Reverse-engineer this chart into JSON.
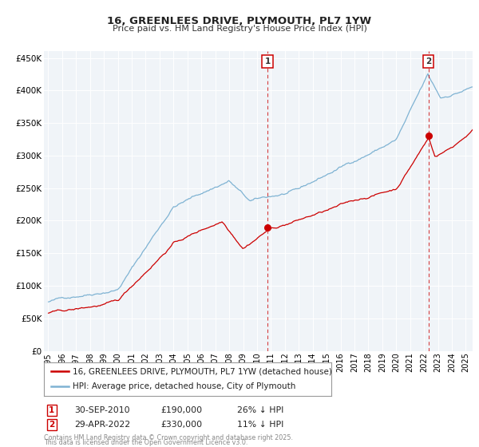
{
  "title": "16, GREENLEES DRIVE, PLYMOUTH, PL7 1YW",
  "subtitle": "Price paid vs. HM Land Registry's House Price Index (HPI)",
  "legend_line1": "16, GREENLEES DRIVE, PLYMOUTH, PL7 1YW (detached house)",
  "legend_line2": "HPI: Average price, detached house, City of Plymouth",
  "red_color": "#cc0000",
  "blue_color": "#7fb3d3",
  "marker1_date_x": 2010.75,
  "marker1_y": 190000,
  "marker2_date_x": 2022.33,
  "marker2_y": 330000,
  "footer_line1": "Contains HM Land Registry data © Crown copyright and database right 2025.",
  "footer_line2": "This data is licensed under the Open Government Licence v3.0.",
  "ylim": [
    0,
    460000
  ],
  "xlim_start": 1994.7,
  "xlim_end": 2025.5,
  "bg_color": "#f0f4f8",
  "grid_color": "#ffffff",
  "info1_date": "30-SEP-2010",
  "info1_price": "£190,000",
  "info1_hpi": "26% ↓ HPI",
  "info2_date": "29-APR-2022",
  "info2_price": "£330,000",
  "info2_hpi": "11% ↓ HPI"
}
